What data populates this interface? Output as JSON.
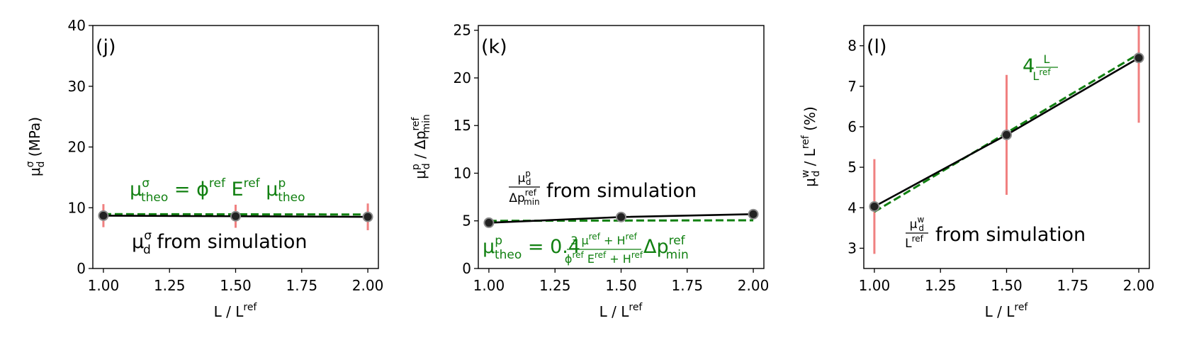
{
  "chart_data": [
    {
      "type": "line",
      "panel_label": "(j)",
      "x": [
        1.0,
        1.5,
        2.0
      ],
      "xticks": [
        "1.00",
        "1.25",
        "1.50",
        "1.75",
        "2.00"
      ],
      "xlim": [
        0.96,
        2.04
      ],
      "ylim": [
        0,
        40
      ],
      "yticks": [
        "0",
        "10",
        "20",
        "30",
        "40"
      ],
      "grid": false,
      "xlabel": {
        "main": "L / L",
        "sup": "ref"
      },
      "ylabel": {
        "main": "μ",
        "sub": "d",
        "sup": "σ",
        "unit": "(MPa)"
      },
      "series": [
        {
          "role": "simulation",
          "values": [
            8.7,
            8.6,
            8.5
          ],
          "error": [
            1.9,
            1.9,
            2.2
          ],
          "color": "#000000",
          "error_color": "#f08080"
        },
        {
          "role": "theory",
          "values": [
            8.95,
            8.92,
            8.89
          ],
          "style": "dashed",
          "color": "#118011"
        }
      ],
      "annotations": {
        "theory": "μ^σ_theo = ϕ^ref E^ref μ^p_theo",
        "simulation": "μ^σ_d from simulation"
      }
    },
    {
      "type": "line",
      "panel_label": "(k)",
      "x": [
        1.0,
        1.5,
        2.0
      ],
      "xticks": [
        "1.00",
        "1.25",
        "1.50",
        "1.75",
        "2.00"
      ],
      "xlim": [
        0.96,
        2.04
      ],
      "ylim": [
        0,
        25.5
      ],
      "yticks": [
        "0",
        "5",
        "10",
        "15",
        "20",
        "25"
      ],
      "grid": false,
      "xlabel": {
        "main": "L / L",
        "sup": "ref"
      },
      "ylabel": {
        "main": "μ",
        "sub": "d",
        "sup": "p",
        "den": "Δp",
        "den_sub": "min",
        "den_sup": "ref"
      },
      "series": [
        {
          "role": "simulation",
          "values": [
            4.8,
            5.4,
            5.7
          ],
          "color": "#000000"
        },
        {
          "role": "theory",
          "values": [
            5.0,
            5.03,
            5.06
          ],
          "style": "dashed",
          "color": "#118011"
        }
      ],
      "annotations": {
        "simulation": "μ^p_d / Δp^ref_min from simulation",
        "theory": "μ^p_theo = 0.4 (3μ^ref + H^ref)/(ϕ^ref E^ref + H^ref) Δp^ref_min",
        "coef": "0.4",
        "frac_num": "3μ",
        "frac_den": "ϕ"
      }
    },
    {
      "type": "line",
      "panel_label": "(l)",
      "x": [
        1.0,
        1.5,
        2.0
      ],
      "xticks": [
        "1.00",
        "1.25",
        "1.50",
        "1.75",
        "2.00"
      ],
      "xlim": [
        0.96,
        2.04
      ],
      "ylim": [
        2.5,
        8.5
      ],
      "yticks": [
        "3",
        "4",
        "5",
        "6",
        "7",
        "8"
      ],
      "grid": false,
      "xlabel": {
        "main": "L / L",
        "sup": "ref"
      },
      "ylabel": {
        "main": "μ",
        "sub": "d",
        "sup": "w",
        "den": "L",
        "den_sup": "ref",
        "unit": "(%)"
      },
      "series": [
        {
          "role": "simulation",
          "values": [
            4.03,
            5.8,
            7.7
          ],
          "error": [
            1.17,
            1.48,
            1.6
          ],
          "color": "#000000",
          "error_color": "#f08080"
        },
        {
          "role": "theory",
          "values": [
            3.9,
            5.85,
            7.8
          ],
          "style": "dashed",
          "color": "#118011"
        }
      ],
      "annotations": {
        "theory": "4 L/L^ref",
        "coef": "4",
        "simulation": "μ^w_d / L^ref from simulation"
      }
    }
  ]
}
